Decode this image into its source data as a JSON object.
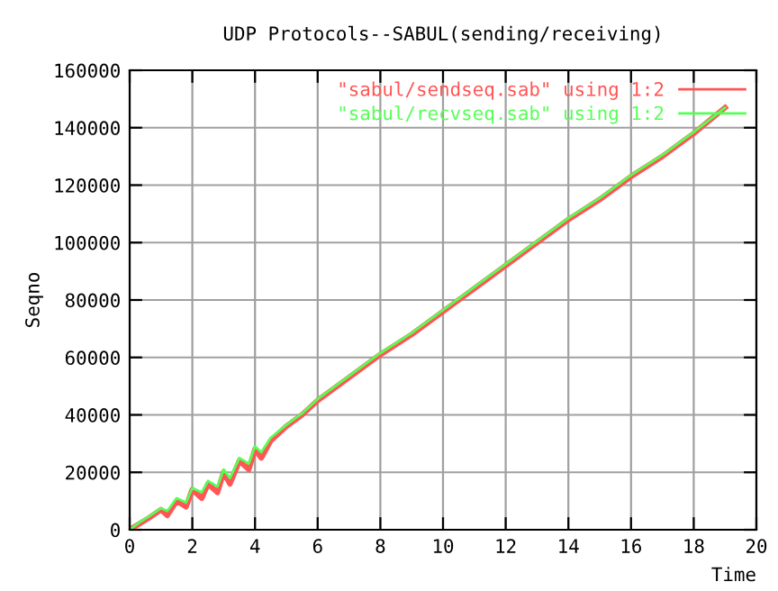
{
  "chart_data": {
    "type": "line",
    "title": "UDP Protocols--SABUL(sending/receiving)",
    "xlabel": "Time",
    "ylabel": "Seqno",
    "xlim": [
      0,
      20
    ],
    "ylim": [
      0,
      160000
    ],
    "xticks": [
      0,
      2,
      4,
      6,
      8,
      10,
      12,
      14,
      16,
      18,
      20
    ],
    "yticks": [
      0,
      20000,
      40000,
      60000,
      80000,
      100000,
      120000,
      140000,
      160000
    ],
    "grid": true,
    "legend": "top right",
    "marker": "none",
    "line_style": "solid",
    "series": [
      {
        "name": "\"sabul/sendseq.sab\" using 1:2",
        "color": "#ff5555",
        "x": [
          0,
          0.3,
          0.6,
          1.0,
          1.2,
          1.5,
          1.8,
          2.0,
          2.3,
          2.5,
          2.8,
          3.0,
          3.2,
          3.5,
          3.8,
          4.0,
          4.2,
          4.5,
          5.0,
          5.5,
          6.0,
          7.0,
          8.0,
          9.0,
          10.0,
          11.0,
          12.0,
          13.0,
          14.0,
          15.0,
          16.0,
          17.0,
          18.0,
          19.0
        ],
        "values": [
          0,
          2000,
          4000,
          7000,
          5000,
          10000,
          8000,
          14000,
          11000,
          16000,
          13000,
          20000,
          16000,
          24000,
          21000,
          28000,
          25000,
          31000,
          36000,
          40000,
          45000,
          53000,
          61000,
          68000,
          76000,
          84000,
          92000,
          100000,
          108000,
          115000,
          123000,
          130000,
          138000,
          147000
        ]
      },
      {
        "name": "\"sabul/recvseq.sab\" using 1:2",
        "color": "#55ff55",
        "x": [
          0,
          0.3,
          0.6,
          1.0,
          1.2,
          1.5,
          1.8,
          2.0,
          2.3,
          2.5,
          2.8,
          3.0,
          3.2,
          3.5,
          3.8,
          4.0,
          4.2,
          4.5,
          5.0,
          5.5,
          6.0,
          7.0,
          8.0,
          9.0,
          10.0,
          11.0,
          12.0,
          13.0,
          14.0,
          15.0,
          16.0,
          17.0,
          18.0,
          19.0
        ],
        "values": [
          0,
          2500,
          4500,
          7500,
          6500,
          11000,
          9500,
          14500,
          13000,
          17000,
          15000,
          21000,
          18000,
          25000,
          23000,
          29000,
          27000,
          32000,
          36500,
          40500,
          45500,
          53500,
          61500,
          68500,
          76500,
          84500,
          92500,
          100500,
          108500,
          115500,
          123500,
          130500,
          138500,
          147000
        ]
      }
    ]
  }
}
